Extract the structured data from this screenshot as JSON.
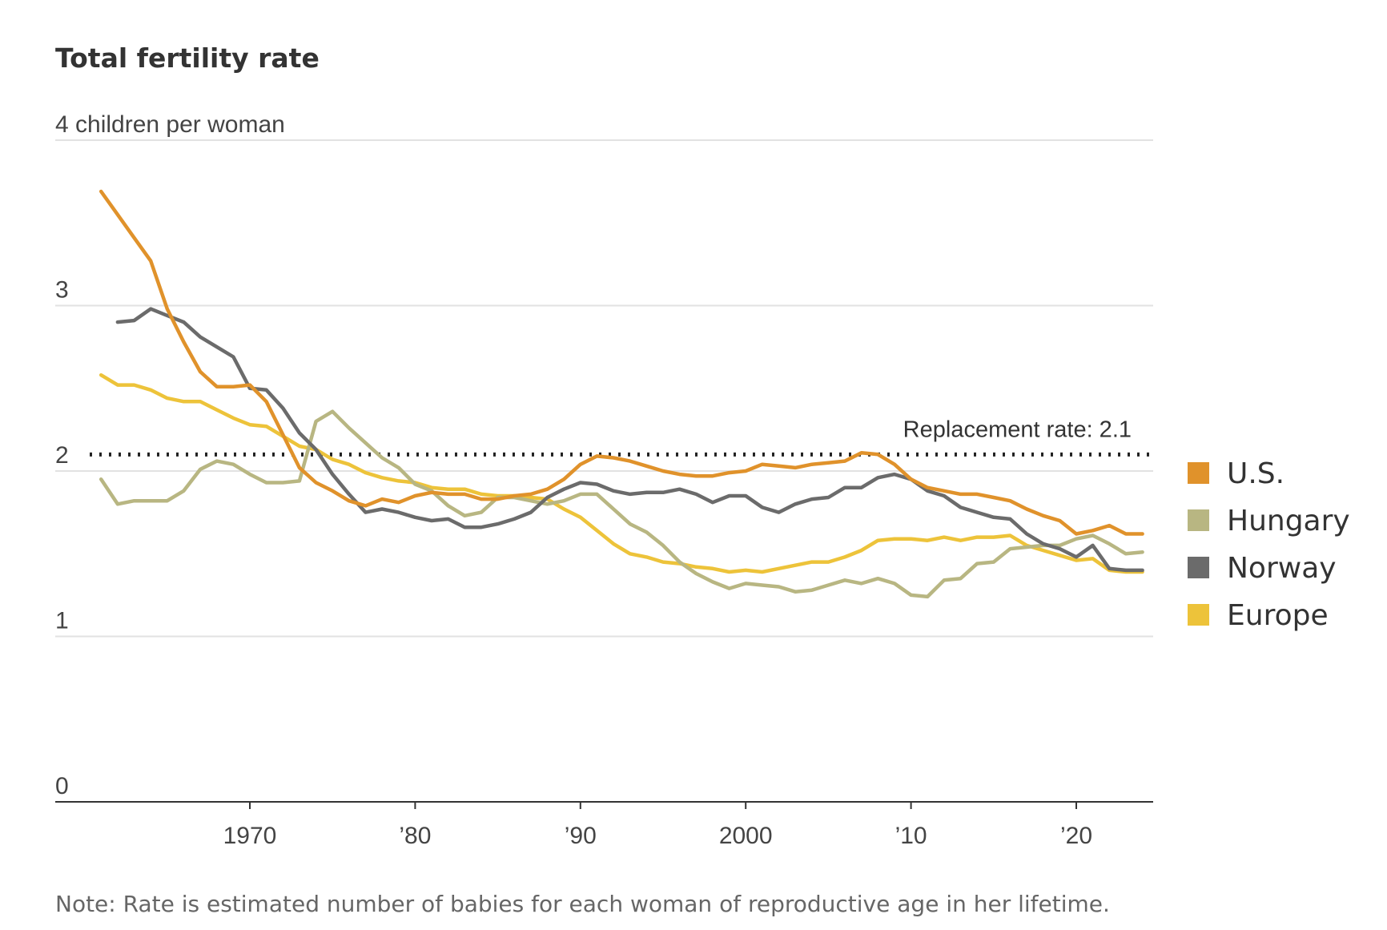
{
  "chart_data": {
    "type": "line",
    "title": "Total fertility rate",
    "ylabel": "children per woman",
    "ylim": [
      0,
      4
    ],
    "y_ticks": [
      {
        "value": 4,
        "label": "4 children per woman"
      },
      {
        "value": 3,
        "label": "3"
      },
      {
        "value": 2,
        "label": "2"
      },
      {
        "value": 1,
        "label": "1"
      },
      {
        "value": 0,
        "label": "0"
      }
    ],
    "xlim": [
      1961,
      2024
    ],
    "x_ticks": [
      {
        "value": 1970,
        "label": "1970"
      },
      {
        "value": 1980,
        "label": "’80"
      },
      {
        "value": 1990,
        "label": "’90"
      },
      {
        "value": 2000,
        "label": "2000"
      },
      {
        "value": 2010,
        "label": "’10"
      },
      {
        "value": 2020,
        "label": "’20"
      }
    ],
    "grid": true,
    "legend_position": "right",
    "reference_line": {
      "value": 2.1,
      "label": "Replacement rate: 2.1",
      "style": "dotted",
      "color": "#222222"
    },
    "series": [
      {
        "name": "U.S.",
        "color": "#E0922B",
        "start_year": 1961,
        "values": [
          3.69,
          3.55,
          3.41,
          3.27,
          2.98,
          2.78,
          2.6,
          2.51,
          2.51,
          2.52,
          2.42,
          2.22,
          2.02,
          1.93,
          1.88,
          1.82,
          1.79,
          1.83,
          1.81,
          1.85,
          1.87,
          1.86,
          1.86,
          1.83,
          1.83,
          1.85,
          1.86,
          1.89,
          1.95,
          2.04,
          2.09,
          2.08,
          2.06,
          2.03,
          2.0,
          1.98,
          1.97,
          1.97,
          1.99,
          2.0,
          2.04,
          2.03,
          2.02,
          2.04,
          2.05,
          2.06,
          2.11,
          2.1,
          2.04,
          1.95,
          1.9,
          1.88,
          1.86,
          1.86,
          1.84,
          1.82,
          1.77,
          1.73,
          1.7,
          1.62,
          1.64,
          1.67,
          1.62,
          1.62
        ]
      },
      {
        "name": "Hungary",
        "color": "#B8B682",
        "start_year": 1961,
        "values": [
          1.95,
          1.8,
          1.82,
          1.82,
          1.82,
          1.88,
          2.01,
          2.06,
          2.04,
          1.98,
          1.93,
          1.93,
          1.94,
          2.3,
          2.36,
          2.26,
          2.17,
          2.08,
          2.02,
          1.92,
          1.88,
          1.79,
          1.73,
          1.75,
          1.84,
          1.84,
          1.82,
          1.8,
          1.82,
          1.86,
          1.86,
          1.77,
          1.68,
          1.63,
          1.55,
          1.45,
          1.38,
          1.33,
          1.29,
          1.32,
          1.31,
          1.3,
          1.27,
          1.28,
          1.31,
          1.34,
          1.32,
          1.35,
          1.32,
          1.25,
          1.24,
          1.34,
          1.35,
          1.44,
          1.45,
          1.53,
          1.54,
          1.55,
          1.55,
          1.59,
          1.61,
          1.56,
          1.5,
          1.51
        ]
      },
      {
        "name": "Norway",
        "color": "#6B6B6B",
        "start_year": 1962,
        "values": [
          2.9,
          2.91,
          2.98,
          2.94,
          2.9,
          2.81,
          2.75,
          2.69,
          2.5,
          2.49,
          2.38,
          2.23,
          2.13,
          1.98,
          1.86,
          1.75,
          1.77,
          1.75,
          1.72,
          1.7,
          1.71,
          1.66,
          1.66,
          1.68,
          1.71,
          1.75,
          1.84,
          1.89,
          1.93,
          1.92,
          1.88,
          1.86,
          1.87,
          1.87,
          1.89,
          1.86,
          1.81,
          1.85,
          1.85,
          1.78,
          1.75,
          1.8,
          1.83,
          1.84,
          1.9,
          1.9,
          1.96,
          1.98,
          1.95,
          1.88,
          1.85,
          1.78,
          1.75,
          1.72,
          1.71,
          1.62,
          1.56,
          1.53,
          1.48,
          1.55,
          1.41,
          1.4,
          1.4
        ]
      },
      {
        "name": "Europe",
        "color": "#EDC33A",
        "start_year": 1961,
        "values": [
          2.58,
          2.52,
          2.52,
          2.49,
          2.44,
          2.42,
          2.42,
          2.37,
          2.32,
          2.28,
          2.27,
          2.21,
          2.15,
          2.13,
          2.07,
          2.04,
          1.99,
          1.96,
          1.94,
          1.93,
          1.9,
          1.89,
          1.89,
          1.86,
          1.85,
          1.85,
          1.84,
          1.83,
          1.77,
          1.72,
          1.64,
          1.56,
          1.5,
          1.48,
          1.45,
          1.44,
          1.42,
          1.41,
          1.39,
          1.4,
          1.39,
          1.41,
          1.43,
          1.45,
          1.45,
          1.48,
          1.52,
          1.58,
          1.59,
          1.59,
          1.58,
          1.6,
          1.58,
          1.6,
          1.6,
          1.61,
          1.55,
          1.52,
          1.49,
          1.46,
          1.47,
          1.4,
          1.39,
          1.39
        ]
      }
    ],
    "note": "Note: Rate is estimated number of babies for each woman of reproductive age in her lifetime."
  }
}
